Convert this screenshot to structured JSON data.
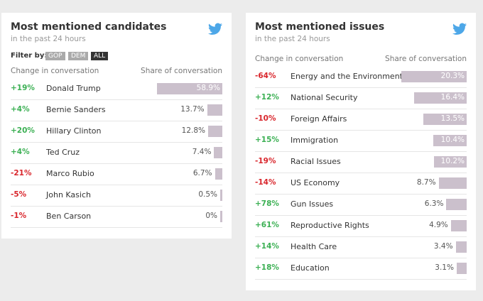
{
  "panels": [
    {
      "title": "Most mentioned candidates",
      "subtitle": "in the past 24 hours",
      "filter": {
        "label": "Filter by:",
        "options": [
          "GOP",
          "DEM",
          "ALL"
        ],
        "selected": "ALL"
      },
      "columns": [
        "Change in conversation",
        "Share of conversation"
      ],
      "rows": [
        {
          "change": "+19%",
          "name": "Donald Trump",
          "share": 58.9,
          "share_label": "58.9%"
        },
        {
          "change": "+4%",
          "name": "Bernie Sanders",
          "share": 13.7,
          "share_label": "13.7%"
        },
        {
          "change": "+20%",
          "name": "Hillary Clinton",
          "share": 12.8,
          "share_label": "12.8%"
        },
        {
          "change": "+4%",
          "name": "Ted Cruz",
          "share": 7.4,
          "share_label": "7.4%"
        },
        {
          "change": "-21%",
          "name": "Marco Rubio",
          "share": 6.7,
          "share_label": "6.7%"
        },
        {
          "change": "-5%",
          "name": "John Kasich",
          "share": 0.5,
          "share_label": "0.5%"
        },
        {
          "change": "-1%",
          "name": "Ben Carson",
          "share": 0,
          "share_label": "0%"
        }
      ]
    },
    {
      "title": "Most mentioned issues",
      "subtitle": "in the past 24 hours",
      "columns": [
        "Change in conversation",
        "Share of conversation"
      ],
      "rows": [
        {
          "change": "-64%",
          "name": "Energy and the Environment",
          "share": 20.3,
          "share_label": "20.3%"
        },
        {
          "change": "+12%",
          "name": "National Security",
          "share": 16.4,
          "share_label": "16.4%"
        },
        {
          "change": "-10%",
          "name": "Foreign Affairs",
          "share": 13.5,
          "share_label": "13.5%"
        },
        {
          "change": "+15%",
          "name": "Immigration",
          "share": 10.4,
          "share_label": "10.4%"
        },
        {
          "change": "-19%",
          "name": "Racial Issues",
          "share": 10.2,
          "share_label": "10.2%"
        },
        {
          "change": "-14%",
          "name": "US Economy",
          "share": 8.7,
          "share_label": "8.7%"
        },
        {
          "change": "+78%",
          "name": "Gun Issues",
          "share": 6.3,
          "share_label": "6.3%"
        },
        {
          "change": "+61%",
          "name": "Reproductive Rights",
          "share": 4.9,
          "share_label": "4.9%"
        },
        {
          "change": "+14%",
          "name": "Health Care",
          "share": 3.4,
          "share_label": "3.4%"
        },
        {
          "change": "+18%",
          "name": "Education",
          "share": 3.1,
          "share_label": "3.1%"
        }
      ]
    }
  ]
}
